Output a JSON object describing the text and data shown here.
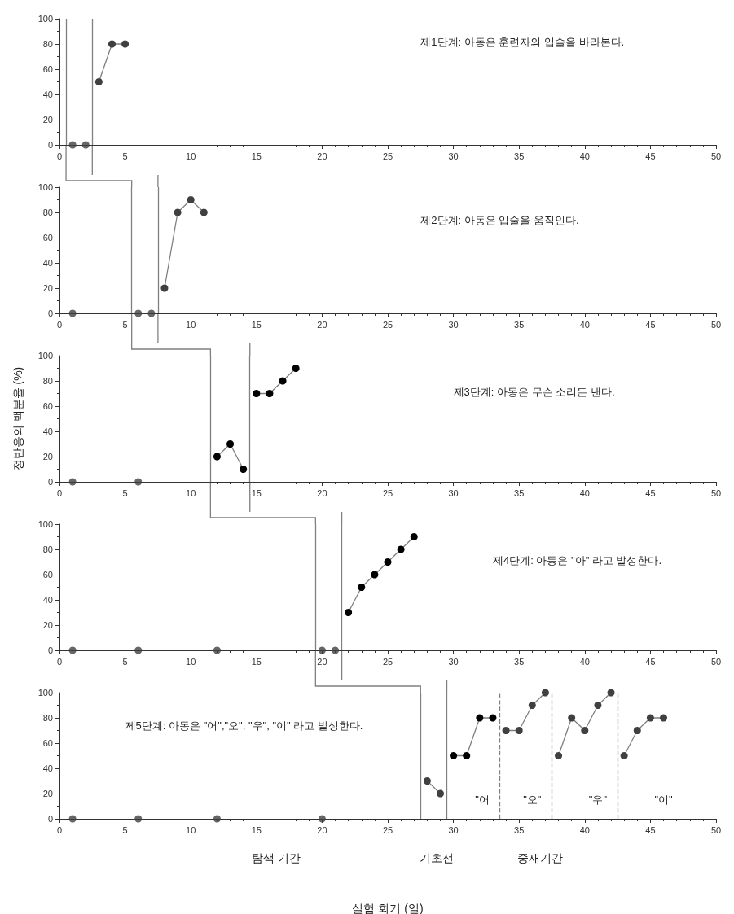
{
  "chart_data": [
    {
      "type": "line",
      "marker": "circle",
      "xlim": [
        0,
        50
      ],
      "xticks": [
        0,
        5,
        10,
        15,
        20,
        25,
        30,
        35,
        40,
        45,
        50
      ],
      "ylim": [
        0,
        100
      ],
      "yticks": [
        0,
        20,
        40,
        60,
        80,
        100
      ],
      "series": [
        {
          "type": "scatter",
          "color": "#404040",
          "x": [
            1,
            2
          ],
          "values": [
            0,
            0
          ]
        },
        {
          "color": "#404040",
          "x": [
            3,
            4,
            5
          ],
          "values": [
            50,
            80,
            80
          ]
        }
      ],
      "ref_lines": [
        {
          "axis": "x",
          "value": 0.5
        },
        {
          "axis": "x",
          "value": 2.5
        }
      ],
      "annotations": [
        "제1단계: 아동은 훈련자의 입술을 바라본다."
      ]
    },
    {
      "type": "line",
      "marker": "circle",
      "xlim": [
        0,
        50
      ],
      "xticks": [
        0,
        5,
        10,
        15,
        20,
        25,
        30,
        35,
        40,
        45,
        50
      ],
      "ylim": [
        0,
        100
      ],
      "yticks": [
        0,
        20,
        40,
        60,
        80,
        100
      ],
      "series": [
        {
          "type": "scatter",
          "color": "#404040",
          "x": [
            1,
            6,
            7
          ],
          "values": [
            0,
            0,
            0
          ]
        },
        {
          "color": "#404040",
          "x": [
            8,
            9,
            10,
            11
          ],
          "values": [
            20,
            80,
            90,
            80
          ]
        }
      ],
      "ref_lines": [
        {
          "axis": "x",
          "value": 5.5
        },
        {
          "axis": "x",
          "value": 7.5
        }
      ],
      "annotations": [
        "제2단계: 아동은 입술을 움직인다."
      ]
    },
    {
      "type": "line",
      "marker": "circle",
      "xlim": [
        0,
        50
      ],
      "xticks": [
        0,
        5,
        10,
        15,
        20,
        25,
        30,
        35,
        40,
        45,
        50
      ],
      "ylim": [
        0,
        100
      ],
      "yticks": [
        0,
        20,
        40,
        60,
        80,
        100
      ],
      "ylabel": "정반응의 백분율 (%)",
      "series": [
        {
          "type": "scatter",
          "color": "#404040",
          "x": [
            1,
            6
          ],
          "values": [
            0,
            0
          ]
        },
        {
          "color": "#000000",
          "x": [
            12,
            13,
            14
          ],
          "values": [
            20,
            30,
            10
          ]
        },
        {
          "color": "#000000",
          "x": [
            15,
            16,
            17,
            18
          ],
          "values": [
            70,
            70,
            80,
            90
          ]
        }
      ],
      "ref_lines": [
        {
          "axis": "x",
          "value": 11.5
        },
        {
          "axis": "x",
          "value": 14.5
        }
      ],
      "annotations": [
        "제3단계: 아동은 무슨 소리든 낸다."
      ]
    },
    {
      "type": "line",
      "marker": "circle",
      "xlim": [
        0,
        50
      ],
      "xticks": [
        0,
        5,
        10,
        15,
        20,
        25,
        30,
        35,
        40,
        45,
        50
      ],
      "ylim": [
        0,
        100
      ],
      "yticks": [
        0,
        20,
        40,
        60,
        80,
        100
      ],
      "series": [
        {
          "type": "scatter",
          "color": "#404040",
          "x": [
            1,
            6,
            12,
            20,
            21
          ],
          "values": [
            0,
            0,
            0,
            0,
            0
          ]
        },
        {
          "color": "#000000",
          "x": [
            22,
            23,
            24,
            25,
            26,
            27
          ],
          "values": [
            30,
            50,
            60,
            70,
            80,
            90
          ]
        }
      ],
      "ref_lines": [
        {
          "axis": "x",
          "value": 19.5
        },
        {
          "axis": "x",
          "value": 21.5
        }
      ],
      "annotations": [
        "제4단계: 아동은 \"아\" 라고 발성한다."
      ]
    },
    {
      "type": "line",
      "marker": "circle",
      "xlim": [
        0,
        50
      ],
      "xticks": [
        0,
        5,
        10,
        15,
        20,
        25,
        30,
        35,
        40,
        45,
        50
      ],
      "ylim": [
        0,
        100
      ],
      "yticks": [
        0,
        20,
        40,
        60,
        80,
        100
      ],
      "xlabel": "실험 회기 (일)",
      "series": [
        {
          "type": "scatter",
          "color": "#404040",
          "x": [
            1,
            6,
            12,
            20
          ],
          "values": [
            0,
            0,
            0,
            0
          ]
        },
        {
          "color": "#404040",
          "x": [
            28,
            29
          ],
          "values": [
            30,
            20
          ]
        },
        {
          "color": "#000000",
          "x": [
            30,
            31,
            32,
            33
          ],
          "values": [
            50,
            50,
            80,
            80
          ]
        },
        {
          "color": "#404040",
          "x": [
            34,
            35,
            36,
            37
          ],
          "values": [
            70,
            70,
            90,
            100
          ]
        },
        {
          "color": "#404040",
          "x": [
            38,
            39,
            40,
            41,
            42
          ],
          "values": [
            50,
            80,
            70,
            90,
            100
          ]
        },
        {
          "color": "#404040",
          "x": [
            43,
            44,
            45,
            46
          ],
          "values": [
            50,
            70,
            80,
            80
          ]
        }
      ],
      "ref_lines": [
        {
          "axis": "x",
          "value": 27.5
        },
        {
          "axis": "x",
          "value": 29.5
        },
        {
          "axis": "x",
          "value": 33.5,
          "line_style": "dashed"
        },
        {
          "axis": "x",
          "value": 37.5,
          "line_style": "dashed"
        },
        {
          "axis": "x",
          "value": 42.5,
          "line_style": "dashed"
        }
      ],
      "annotations": [
        "제5단계: 아동은 \"어\",\"오\", \"우\", \"이\" 라고 발성한다.",
        "\"어",
        "\"오\"",
        "\"우\"",
        "\"이\"",
        "탐색 기간",
        "기초선",
        "중재기간"
      ]
    }
  ]
}
